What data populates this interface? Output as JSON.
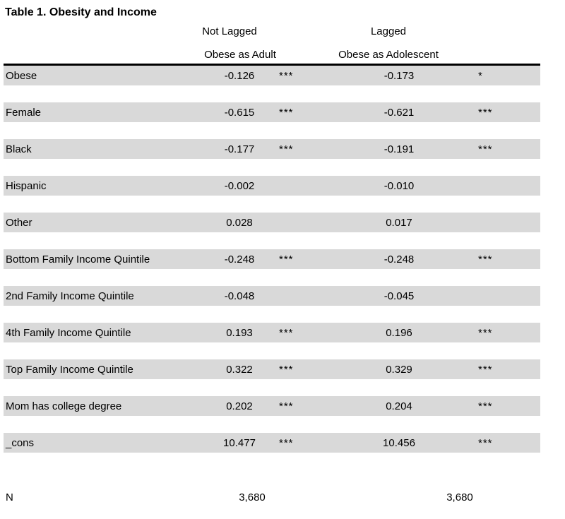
{
  "title": "Table 1. Obesity and Income",
  "colors": {
    "row_band": "#D9D9D9",
    "rule": "#000000",
    "text": "#000000",
    "background": "#FFFFFF"
  },
  "header": {
    "group1": "Not Lagged",
    "group2": "Lagged",
    "sub1": "Obese as Adult",
    "sub2": "Obese as Adolescent"
  },
  "rows": [
    {
      "label": "Obese",
      "value1": "-0.126",
      "stars1": "***",
      "value2": "-0.173",
      "stars2": "*"
    },
    {
      "label": "Female",
      "value1": "-0.615",
      "stars1": "***",
      "value2": "-0.621",
      "stars2": "***"
    },
    {
      "label": "Black",
      "value1": "-0.177",
      "stars1": "***",
      "value2": "-0.191",
      "stars2": "***"
    },
    {
      "label": "Hispanic",
      "value1": "-0.002",
      "stars1": "",
      "value2": "-0.010",
      "stars2": ""
    },
    {
      "label": "Other",
      "value1": "0.028",
      "stars1": "",
      "value2": "0.017",
      "stars2": ""
    },
    {
      "label": "Bottom Family Income Quintile",
      "value1": "-0.248",
      "stars1": "***",
      "value2": "-0.248",
      "stars2": "***"
    },
    {
      "label": "2nd Family Income Quintile",
      "value1": "-0.048",
      "stars1": "",
      "value2": "-0.045",
      "stars2": ""
    },
    {
      "label": "4th Family Income Quintile",
      "value1": "0.193",
      "stars1": "***",
      "value2": "0.196",
      "stars2": "***"
    },
    {
      "label": "Top Family Income Quintile",
      "value1": "0.322",
      "stars1": "***",
      "value2": "0.329",
      "stars2": "***"
    },
    {
      "label": "Mom has college degree",
      "value1": "0.202",
      "stars1": "***",
      "value2": "0.204",
      "stars2": "***"
    },
    {
      "label": "_cons",
      "value1": "10.477",
      "stars1": "***",
      "value2": "10.456",
      "stars2": "***"
    }
  ],
  "footer": {
    "label": "N",
    "value1": "3,680",
    "value2": "3,680"
  }
}
